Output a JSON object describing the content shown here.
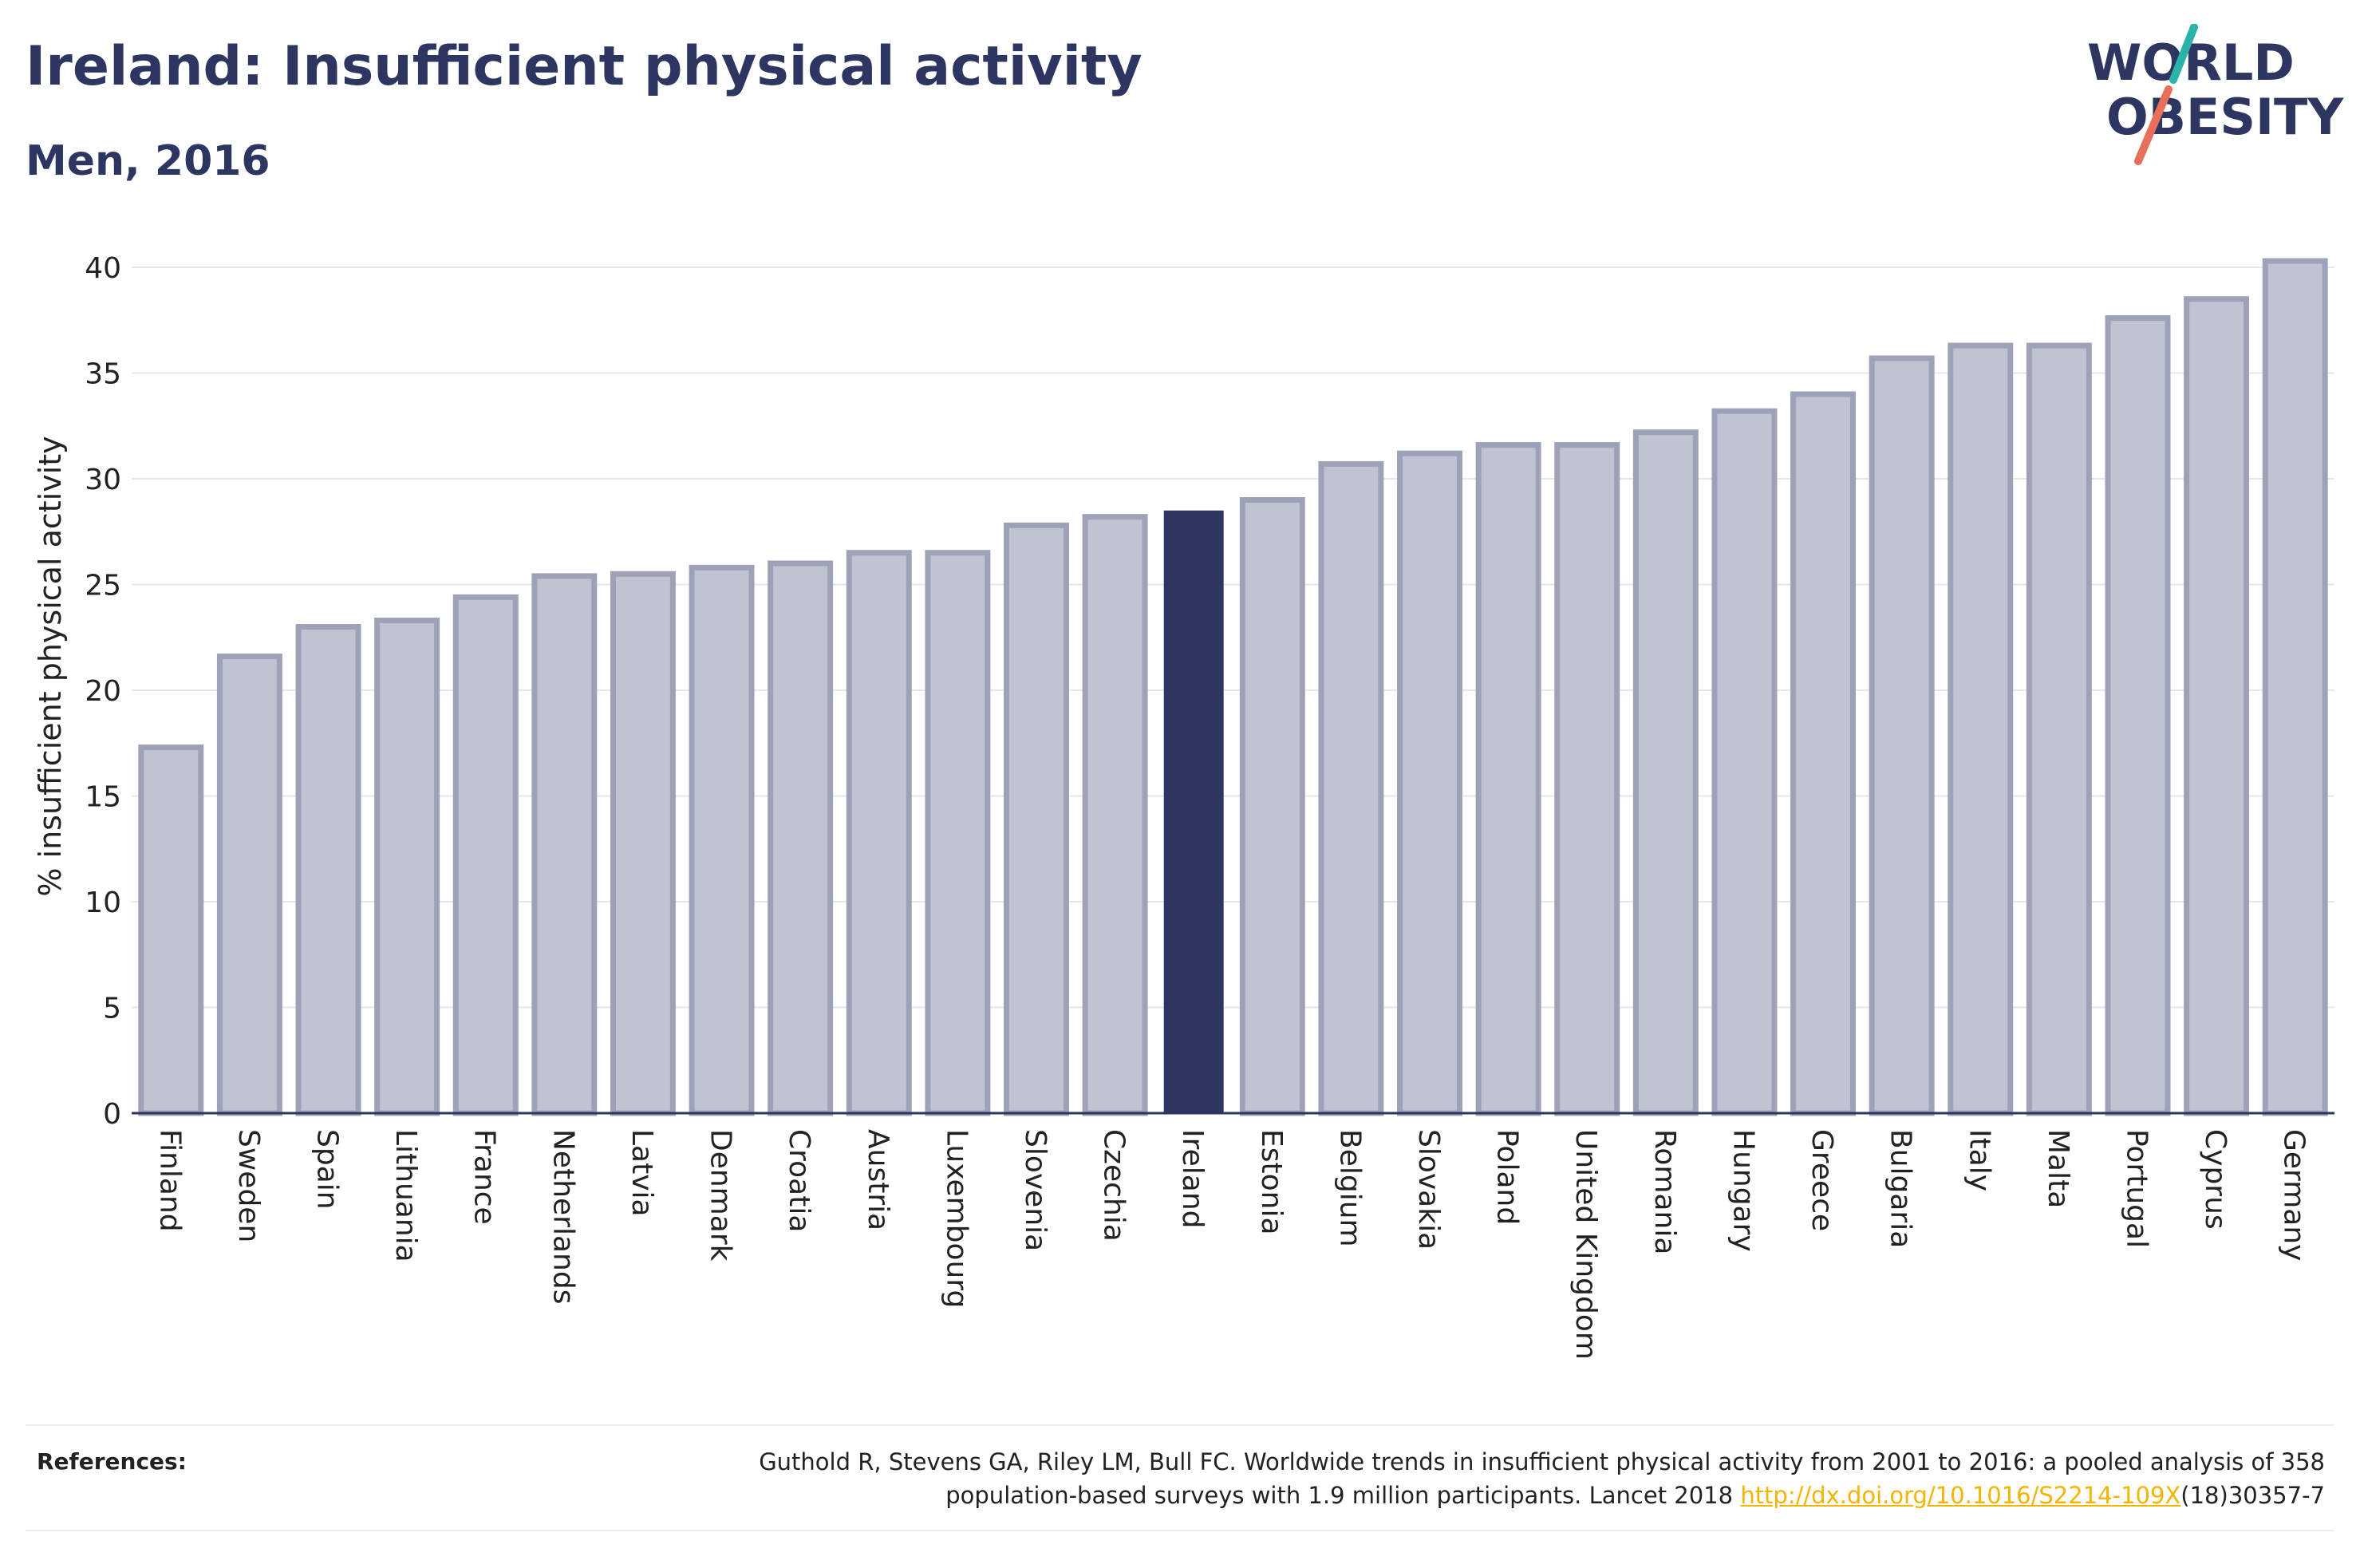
{
  "header": {
    "title": "Ireland: Insufficient physical activity",
    "subtitle": "Men, 2016"
  },
  "logo": {
    "line1": "WORLD",
    "line2": "OBESITY",
    "colors": {
      "text": "#2d3561",
      "teal": "#2bb3a8",
      "coral": "#e8705a"
    }
  },
  "chart_data": {
    "type": "bar",
    "title": "Ireland: Insufficient physical activity",
    "subtitle": "Men, 2016",
    "ylabel": "% insufficient physical activity",
    "xlabel": "",
    "ylim": [
      0,
      42
    ],
    "yticks": [
      0,
      5,
      10,
      15,
      20,
      25,
      30,
      35,
      40
    ],
    "grid": true,
    "highlight": "Ireland",
    "colors": {
      "bar": "#c0c3d1",
      "bar_border": "#9da2b8",
      "highlight": "#2d3561"
    },
    "categories": [
      "Finland",
      "Sweden",
      "Spain",
      "Lithuania",
      "France",
      "Netherlands",
      "Latvia",
      "Denmark",
      "Croatia",
      "Austria",
      "Luxembourg",
      "Slovenia",
      "Czechia",
      "Ireland",
      "Estonia",
      "Belgium",
      "Slovakia",
      "Poland",
      "United Kingdom",
      "Romania",
      "Hungary",
      "Greece",
      "Bulgaria",
      "Italy",
      "Malta",
      "Portugal",
      "Cyprus",
      "Germany"
    ],
    "values": [
      17.3,
      21.6,
      23.0,
      23.3,
      24.4,
      25.4,
      25.5,
      25.8,
      26.0,
      26.5,
      26.5,
      27.8,
      28.2,
      28.5,
      29.0,
      30.7,
      31.2,
      31.6,
      31.6,
      32.2,
      33.2,
      34.0,
      35.7,
      36.3,
      36.3,
      37.6,
      38.5,
      40.3
    ]
  },
  "references": {
    "label": "References:",
    "text_line1": "Guthold R, Stevens GA, Riley LM, Bull FC. Worldwide trends in insufficient physical activity from 2001 to 2016: a pooled analysis of 358",
    "text_line2_pre": "population-based surveys with 1.9 million participants. Lancet 2018 ",
    "link": "http://dx.doi.org/10.1016/S2214-109X",
    "text_line2_post": "(18)30357-7"
  }
}
